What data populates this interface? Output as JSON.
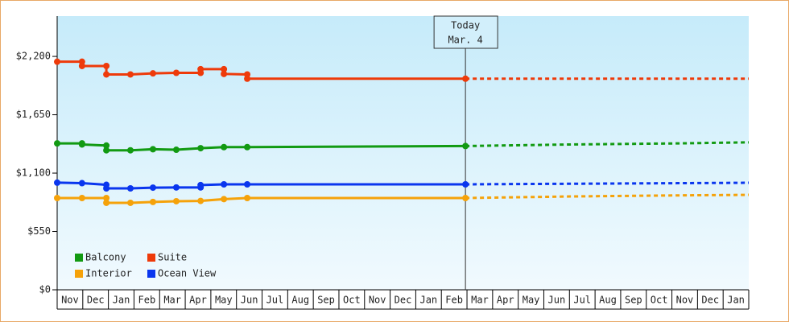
{
  "chart_data": {
    "type": "line",
    "categories": [
      "Nov",
      "Dec",
      "Jan",
      "Feb",
      "Mar",
      "Apr",
      "May",
      "Jun",
      "Jul",
      "Aug",
      "Sep",
      "Oct",
      "Nov",
      "Dec",
      "Jan",
      "Feb",
      "Mar",
      "Apr",
      "May",
      "Jun",
      "Jul",
      "Aug",
      "Sep",
      "Oct",
      "Nov",
      "Dec",
      "Jan"
    ],
    "xlim": [
      0,
      27
    ],
    "ylim": [
      0,
      2580
    ],
    "yticks": [
      {
        "value": 0,
        "label": "$0"
      },
      {
        "value": 550,
        "label": "$550"
      },
      {
        "value": 1100,
        "label": "$1,100"
      },
      {
        "value": 1650,
        "label": "$1,650"
      },
      {
        "value": 2200,
        "label": "$2,200"
      }
    ],
    "today": {
      "x": 15.94,
      "label": "Today",
      "date": "Mar. 4"
    },
    "legend": "lower left",
    "series": [
      {
        "name": "Balcony",
        "color": "#129a12",
        "x": [
          0,
          0.97,
          0.97,
          1.92,
          1.92,
          2.86,
          3.74,
          4.65,
          5.6,
          6.51,
          7.42,
          15.94
        ],
        "values": [
          1380,
          1380,
          1370,
          1360,
          1315,
          1315,
          1325,
          1320,
          1335,
          1345,
          1345,
          1355
        ],
        "forecast_x": [
          15.94,
          17.25,
          20.1,
          24.2,
          27
        ],
        "forecast_values": [
          1355,
          1360,
          1370,
          1380,
          1390
        ]
      },
      {
        "name": "Suite",
        "color": "#ee3a0a",
        "x": [
          0,
          0.97,
          0.97,
          1.92,
          1.92,
          2.86,
          3.74,
          4.65,
          5.6,
          5.6,
          6.51,
          6.51,
          7.42,
          7.42,
          15.94
        ],
        "values": [
          2150,
          2150,
          2110,
          2110,
          2030,
          2030,
          2040,
          2045,
          2045,
          2080,
          2080,
          2035,
          2030,
          1990,
          1990
        ],
        "forecast_x": [
          15.94,
          27
        ],
        "forecast_values": [
          1990,
          1990
        ]
      },
      {
        "name": "Interior",
        "color": "#f5a20a",
        "x": [
          0,
          0.97,
          1.92,
          1.92,
          2.86,
          3.74,
          4.65,
          5.6,
          6.51,
          7.42,
          15.94
        ],
        "values": [
          865,
          865,
          865,
          820,
          820,
          828,
          835,
          838,
          855,
          865,
          865
        ],
        "forecast_x": [
          15.94,
          17.25,
          20.1,
          24.2,
          27
        ],
        "forecast_values": [
          865,
          870,
          880,
          890,
          895
        ]
      },
      {
        "name": "Ocean View",
        "color": "#0a36ee",
        "x": [
          0,
          0.97,
          1.92,
          1.92,
          2.86,
          3.74,
          4.65,
          5.6,
          5.6,
          6.51,
          7.42,
          15.94
        ],
        "values": [
          1010,
          1005,
          990,
          956,
          956,
          963,
          965,
          965,
          987,
          994,
          994,
          994
        ],
        "forecast_x": [
          15.94,
          17.25,
          24.2,
          27
        ],
        "forecast_values": [
          994,
          996,
          1005,
          1009
        ]
      }
    ]
  }
}
